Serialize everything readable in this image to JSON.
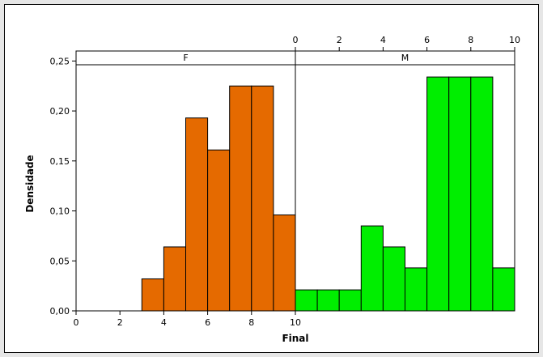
{
  "chart_data": {
    "type": "bar",
    "xlabel": "Final",
    "ylabel": "Densidade",
    "ylim": [
      0,
      0.26
    ],
    "yticks": [
      0,
      0.05,
      0.1,
      0.15,
      0.2,
      0.25
    ],
    "ytick_labels": [
      "0,00",
      "0,05",
      "0,10",
      "0,15",
      "0,20",
      "0,25"
    ],
    "xlim": [
      0,
      10
    ],
    "xticks": [
      0,
      2,
      4,
      6,
      8,
      10
    ],
    "xtick_labels": [
      "0",
      "2",
      "4",
      "6",
      "8",
      "10"
    ],
    "panels": [
      {
        "name": "F",
        "color": "#e56a00",
        "bins": [
          {
            "x0": 3,
            "x1": 4,
            "density": 0.032
          },
          {
            "x0": 4,
            "x1": 5,
            "density": 0.064
          },
          {
            "x0": 5,
            "x1": 6,
            "density": 0.193
          },
          {
            "x0": 6,
            "x1": 7,
            "density": 0.161
          },
          {
            "x0": 7,
            "x1": 8,
            "density": 0.225
          },
          {
            "x0": 8,
            "x1": 9,
            "density": 0.225
          },
          {
            "x0": 9,
            "x1": 10,
            "density": 0.096
          }
        ]
      },
      {
        "name": "M",
        "color": "#00ee00",
        "bins": [
          {
            "x0": 0,
            "x1": 1,
            "density": 0.021
          },
          {
            "x0": 1,
            "x1": 2,
            "density": 0.021
          },
          {
            "x0": 2,
            "x1": 3,
            "density": 0.021
          },
          {
            "x0": 3,
            "x1": 4,
            "density": 0.085
          },
          {
            "x0": 4,
            "x1": 5,
            "density": 0.064
          },
          {
            "x0": 5,
            "x1": 6,
            "density": 0.043
          },
          {
            "x0": 6,
            "x1": 7,
            "density": 0.234
          },
          {
            "x0": 7,
            "x1": 8,
            "density": 0.234
          },
          {
            "x0": 8,
            "x1": 9,
            "density": 0.234
          },
          {
            "x0": 9,
            "x1": 10,
            "density": 0.043
          }
        ]
      }
    ],
    "grid": false,
    "frame_color": "#000000",
    "outer_background": "#e6e6e6",
    "plot_background": "#ffffff"
  }
}
